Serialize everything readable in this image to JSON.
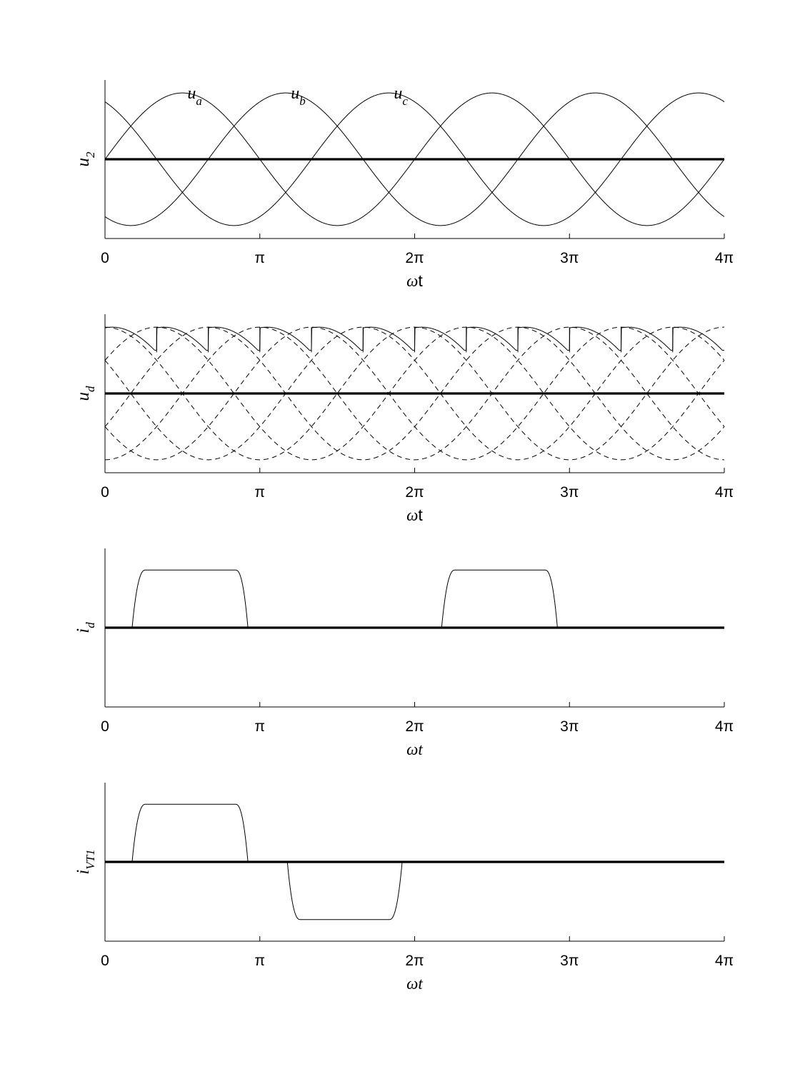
{
  "chart_data": [
    {
      "type": "line",
      "ylabel": {
        "base": "u",
        "sub": "2"
      },
      "xlabel": {
        "symbol": "ω",
        "rest": "t",
        "italic_rest": false
      },
      "x_ticks": [
        "0",
        "π",
        "2π",
        "3π",
        "4π"
      ],
      "xlim": [
        0,
        12.566
      ],
      "ylim": [
        -1.1,
        1.1
      ],
      "grid": false,
      "annotations": [
        {
          "base": "u",
          "sub": "a",
          "x": 1.57
        },
        {
          "base": "u",
          "sub": "b",
          "x": 3.67
        },
        {
          "base": "u",
          "sub": "c",
          "x": 5.76
        }
      ],
      "series": [
        {
          "name": "u_a",
          "function": "sin(ωt)",
          "style": "solid"
        },
        {
          "name": "u_b",
          "function": "sin(ωt − 2π/3)",
          "style": "solid"
        },
        {
          "name": "u_c",
          "function": "sin(ωt + 2π/3)",
          "style": "solid"
        },
        {
          "name": "zero",
          "values": [
            0,
            0
          ],
          "style": "bold"
        }
      ]
    },
    {
      "type": "line",
      "ylabel": {
        "base": "u",
        "sub": "d"
      },
      "xlabel": {
        "symbol": "ω",
        "rest": "t",
        "italic_rest": false
      },
      "x_ticks": [
        "0",
        "π",
        "2π",
        "3π",
        "4π"
      ],
      "xlim": [
        0,
        12.566
      ],
      "ylim": [
        -1.1,
        1.1
      ],
      "grid": false,
      "series": [
        {
          "name": "line voltages (6)",
          "function": "±sin(ωt ± k·π/3)",
          "style": "dashed"
        },
        {
          "name": "u_d",
          "function": "rectified envelope with commutation notches every π/3",
          "style": "solid"
        },
        {
          "name": "zero",
          "values": [
            0,
            0
          ],
          "style": "bold"
        }
      ]
    },
    {
      "type": "line",
      "ylabel": {
        "base": "i",
        "sub": "d"
      },
      "xlabel": {
        "symbol": "ω",
        "rest": "t",
        "italic_rest": true
      },
      "x_ticks": [
        "0",
        "π",
        "2π",
        "3π",
        "4π"
      ],
      "xlim": [
        0,
        12.566
      ],
      "ylim": [
        -1.1,
        1.1
      ],
      "grid": false,
      "series": [
        {
          "name": "i_d",
          "pulses": [
            {
              "start": 0.55,
              "flat_start": 0.82,
              "flat_end": 2.65,
              "end": 2.9,
              "level": 0.8
            },
            {
              "start": 6.83,
              "flat_start": 7.1,
              "flat_end": 8.93,
              "end": 9.18,
              "level": 0.8
            }
          ],
          "style": "solid"
        },
        {
          "name": "zero",
          "values": [
            0,
            0
          ],
          "style": "bold"
        }
      ]
    },
    {
      "type": "line",
      "ylabel": {
        "base": "i",
        "sub": "VT1"
      },
      "xlabel": {
        "symbol": "ω",
        "rest": "t",
        "italic_rest": true
      },
      "x_ticks": [
        "0",
        "π",
        "2π",
        "3π",
        "4π"
      ],
      "xlim": [
        0,
        12.566
      ],
      "ylim": [
        -1.1,
        1.1
      ],
      "grid": false,
      "series": [
        {
          "name": "i_VT1",
          "pulses": [
            {
              "start": 0.55,
              "flat_start": 0.82,
              "flat_end": 2.65,
              "end": 2.9,
              "level": 0.8
            },
            {
              "start": 3.7,
              "flat_start": 3.96,
              "flat_end": 5.77,
              "end": 6.03,
              "level": -0.8
            }
          ],
          "style": "solid"
        },
        {
          "name": "zero",
          "values": [
            0,
            0
          ],
          "style": "bold"
        }
      ]
    }
  ]
}
